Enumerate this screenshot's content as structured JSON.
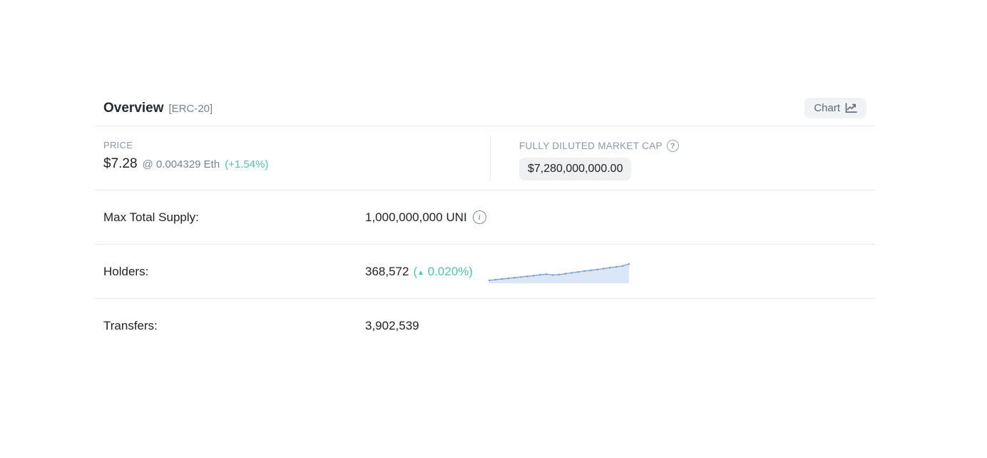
{
  "header": {
    "title": "Overview",
    "token_standard": "[ERC-20]",
    "chart_button_label": "Chart"
  },
  "price_section": {
    "label": "PRICE",
    "usd_value": "$7.28",
    "eth_value": "@ 0.004329 Eth",
    "change": "(+1.54%)"
  },
  "market_cap_section": {
    "label": "FULLY DILUTED MARKET CAP",
    "help_icon_glyph": "?",
    "value": "$7,280,000,000.00"
  },
  "supply_row": {
    "label": "Max Total Supply:",
    "value": "1,000,000,000 UNI",
    "info_icon_glyph": "i"
  },
  "holders_row": {
    "label": "Holders:",
    "value": "368,572",
    "change_open": "(",
    "up_arrow": "▲",
    "change_rest": " 0.020%)"
  },
  "transfers_row": {
    "label": "Transfers:",
    "value": "3,902,539"
  },
  "colors": {
    "success_green": "#4ec6a0",
    "text_dark": "#1e2022",
    "text_muted": "#77838f",
    "label_gray": "#8c98a4",
    "divider": "#e7eaf3",
    "pill_background": "#eef0f2",
    "button_background": "#f1f2f4"
  },
  "sparkline": {
    "description": "holders-trend-mini-area-chart",
    "values": [
      10,
      13,
      16,
      19,
      22,
      25,
      28,
      31,
      35,
      38,
      34,
      36,
      40,
      44,
      48,
      52,
      55,
      59,
      63,
      67,
      71,
      75,
      84
    ],
    "line_color": "#7ba0d0",
    "fill_color": "#dbe6f6"
  }
}
